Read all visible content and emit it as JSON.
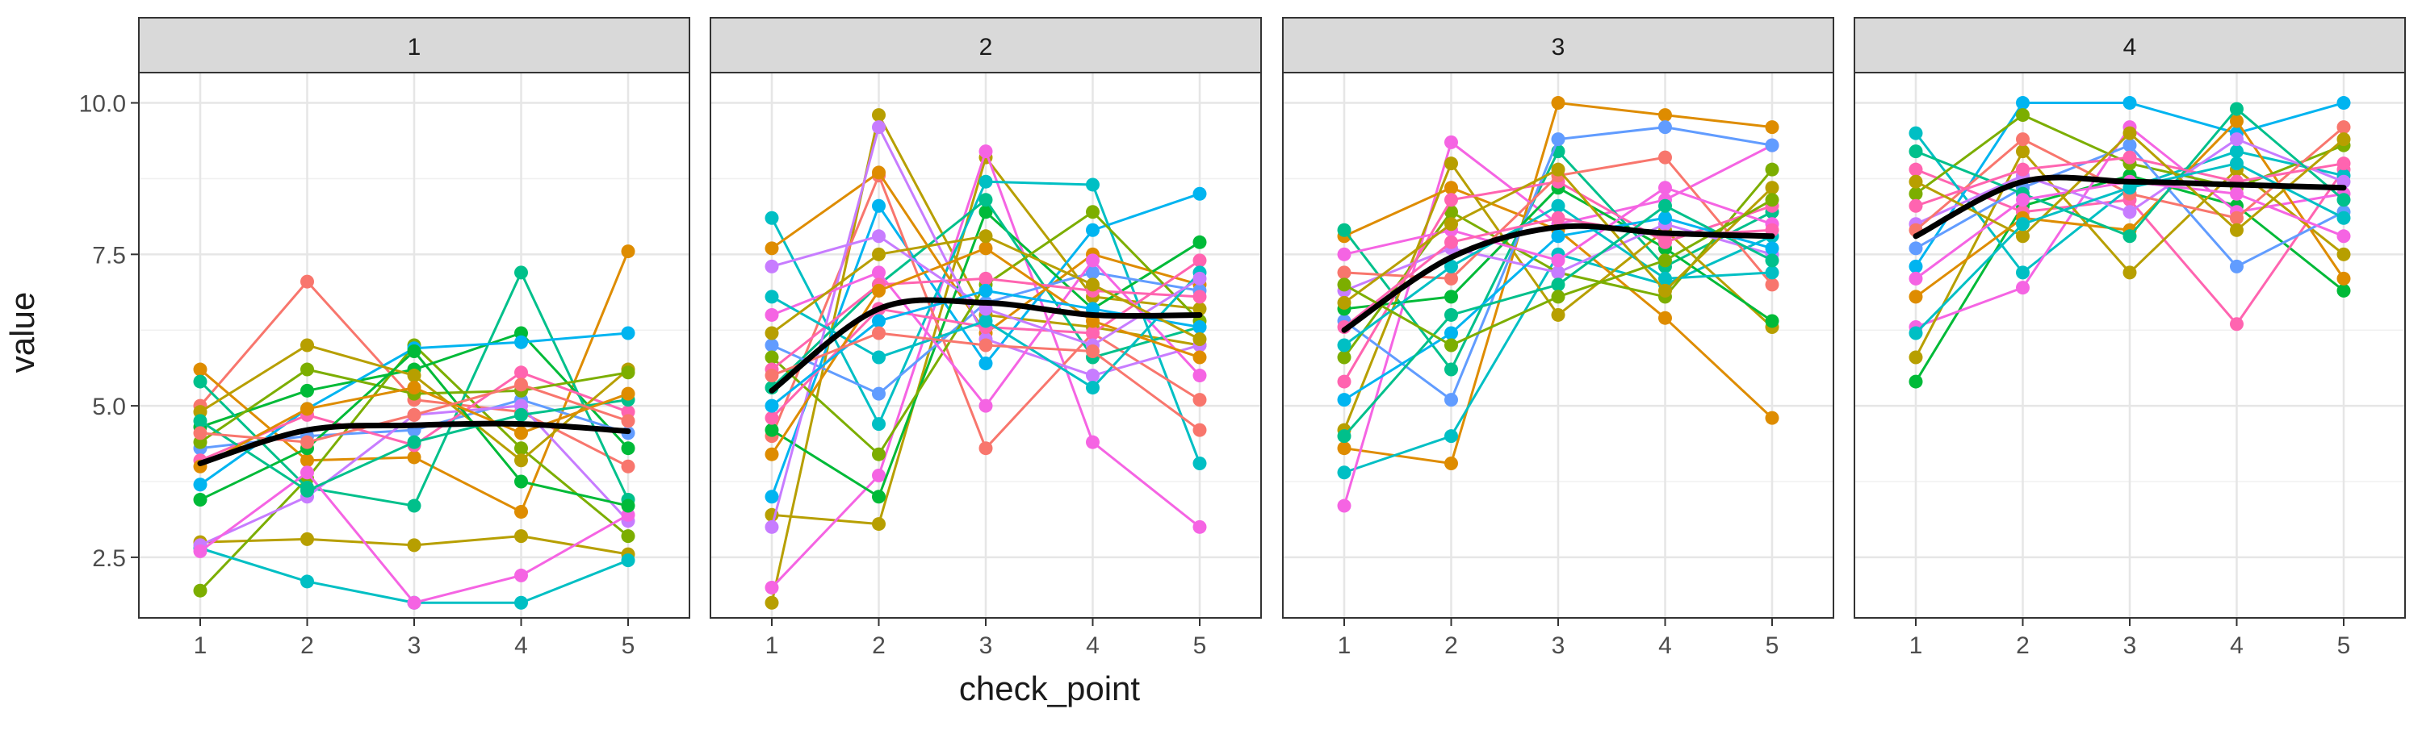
{
  "chart_data": {
    "type": "line",
    "facet_labels": [
      "1",
      "2",
      "3",
      "4"
    ],
    "xlabel": "check_point",
    "ylabel": "value",
    "x": [
      1,
      2,
      3,
      4,
      5
    ],
    "x_ticks": [
      "1",
      "2",
      "3",
      "4",
      "5"
    ],
    "y_ticks": [
      2.5,
      5.0,
      7.5,
      10.0
    ],
    "y_tick_labels": [
      "2.5",
      "5.0",
      "7.5",
      "10.0"
    ],
    "ylim": [
      1.5,
      10.5
    ],
    "grid": true,
    "legend": "none",
    "trend_color": "#000000",
    "palette": [
      "#F8766D",
      "#DE8C00",
      "#B79F00",
      "#7CAE00",
      "#00BA38",
      "#00C08B",
      "#00BFC4",
      "#00B4F0",
      "#619CFF",
      "#C77CFF",
      "#F564E3",
      "#FF64B0"
    ],
    "panels": [
      {
        "facet": "1",
        "trend": [
          4.05,
          4.6,
          4.68,
          4.7,
          4.58
        ],
        "sample_series": [
          {
            "color": "#F8766D",
            "values": [
              5.0,
              7.05,
              5.1,
              4.9,
              4.0
            ]
          },
          {
            "color": "#DE8C00",
            "values": [
              5.6,
              4.1,
              4.15,
              3.25,
              7.55
            ]
          },
          {
            "color": "#B79F00",
            "values": [
              2.75,
              2.8,
              2.7,
              2.85,
              2.55
            ]
          },
          {
            "color": "#7CAE00",
            "values": [
              1.95,
              3.8,
              6.0,
              4.3,
              2.85
            ]
          },
          {
            "color": "#00BA38",
            "values": [
              4.65,
              5.25,
              5.6,
              6.2,
              4.3
            ]
          },
          {
            "color": "#00C08B",
            "values": [
              5.4,
              3.65,
              3.35,
              7.2,
              3.45
            ]
          },
          {
            "color": "#00BFC4",
            "values": [
              2.65,
              2.1,
              1.75,
              1.75,
              2.45
            ]
          },
          {
            "color": "#00B4F0",
            "values": [
              3.7,
              4.95,
              5.95,
              6.05,
              6.2
            ]
          },
          {
            "color": "#619CFF",
            "values": [
              4.3,
              4.5,
              4.6,
              5.1,
              4.55
            ]
          },
          {
            "color": "#C77CFF",
            "values": [
              2.7,
              3.5,
              4.85,
              5.0,
              3.1
            ]
          },
          {
            "color": "#F564E3",
            "values": [
              2.6,
              3.9,
              1.75,
              2.2,
              3.2
            ]
          },
          {
            "color": "#FF64B0",
            "values": [
              4.1,
              4.85,
              4.35,
              5.55,
              4.9
            ]
          },
          {
            "color": "#B79F00",
            "values": [
              4.9,
              6.0,
              5.5,
              4.1,
              5.6
            ]
          },
          {
            "color": "#7CAE00",
            "values": [
              4.4,
              5.6,
              5.2,
              5.25,
              5.55
            ]
          },
          {
            "color": "#00BA38",
            "values": [
              3.45,
              4.3,
              5.9,
              3.75,
              3.35
            ]
          },
          {
            "color": "#00C08B",
            "values": [
              4.75,
              3.6,
              4.4,
              4.85,
              5.1
            ]
          },
          {
            "color": "#DE8C00",
            "values": [
              4.0,
              4.95,
              5.3,
              4.55,
              5.2
            ]
          },
          {
            "color": "#F8766D",
            "values": [
              4.55,
              4.4,
              4.85,
              5.35,
              4.75
            ]
          }
        ]
      },
      {
        "facet": "2",
        "trend": [
          5.25,
          6.6,
          6.7,
          6.5,
          6.5
        ],
        "sample_series": [
          {
            "color": "#B79F00",
            "values": [
              1.75,
              9.8,
              6.5,
              6.3,
              6.0
            ]
          },
          {
            "color": "#B79F00",
            "values": [
              3.2,
              3.05,
              9.1,
              6.8,
              6.6
            ]
          },
          {
            "color": "#F564E3",
            "values": [
              2.0,
              3.85,
              9.2,
              4.4,
              3.0
            ]
          },
          {
            "color": "#00BFC4",
            "values": [
              8.1,
              4.7,
              8.7,
              8.65,
              4.05
            ]
          },
          {
            "color": "#00B4F0",
            "values": [
              3.5,
              8.3,
              5.7,
              7.9,
              8.5
            ]
          },
          {
            "color": "#F8766D",
            "values": [
              4.5,
              8.8,
              4.3,
              6.2,
              5.1
            ]
          },
          {
            "color": "#DE8C00",
            "values": [
              7.6,
              8.85,
              6.2,
              7.5,
              7.0
            ]
          },
          {
            "color": "#00BA38",
            "values": [
              4.6,
              3.5,
              8.2,
              6.6,
              7.7
            ]
          },
          {
            "color": "#00C08B",
            "values": [
              5.3,
              7.0,
              8.4,
              5.8,
              6.3
            ]
          },
          {
            "color": "#619CFF",
            "values": [
              6.0,
              5.2,
              6.7,
              7.2,
              6.9
            ]
          },
          {
            "color": "#C77CFF",
            "values": [
              3.0,
              9.6,
              6.1,
              5.5,
              6.0
            ]
          },
          {
            "color": "#7CAE00",
            "values": [
              5.8,
              4.2,
              7.0,
              8.2,
              6.4
            ]
          },
          {
            "color": "#FF64B0",
            "values": [
              4.8,
              6.6,
              6.3,
              6.2,
              7.4
            ]
          },
          {
            "color": "#F564E3",
            "values": [
              6.5,
              7.2,
              5.0,
              7.4,
              5.5
            ]
          },
          {
            "color": "#FF64B0",
            "values": [
              5.6,
              7.0,
              7.1,
              6.9,
              6.8
            ]
          },
          {
            "color": "#00BFC4",
            "values": [
              6.8,
              5.8,
              6.4,
              5.3,
              7.2
            ]
          },
          {
            "color": "#DE8C00",
            "values": [
              4.2,
              6.9,
              7.6,
              6.4,
              5.8
            ]
          },
          {
            "color": "#C77CFF",
            "values": [
              7.3,
              7.8,
              6.6,
              6.0,
              7.1
            ]
          },
          {
            "color": "#00B4F0",
            "values": [
              5.0,
              6.4,
              6.9,
              6.6,
              6.3
            ]
          },
          {
            "color": "#B79F00",
            "values": [
              6.2,
              7.5,
              7.8,
              7.0,
              6.1
            ]
          },
          {
            "color": "#F8766D",
            "values": [
              5.5,
              6.2,
              6.0,
              5.9,
              4.6
            ]
          }
        ]
      },
      {
        "facet": "3",
        "trend": [
          6.25,
          7.45,
          7.95,
          7.85,
          7.8
        ],
        "sample_series": [
          {
            "color": "#DE8C00",
            "values": [
              4.3,
              4.05,
              10.0,
              9.8,
              9.6
            ]
          },
          {
            "color": "#00BFC4",
            "values": [
              3.9,
              4.5,
              7.5,
              7.0,
              7.8
            ]
          },
          {
            "color": "#F564E3",
            "values": [
              3.35,
              9.35,
              8.0,
              8.4,
              9.3
            ]
          },
          {
            "color": "#DE8C00",
            "values": [
              7.8,
              8.6,
              7.9,
              6.45,
              4.8
            ]
          },
          {
            "color": "#00C08B",
            "values": [
              7.9,
              5.6,
              9.2,
              7.3,
              8.2
            ]
          },
          {
            "color": "#B79F00",
            "values": [
              4.6,
              9.0,
              6.5,
              7.9,
              6.3
            ]
          },
          {
            "color": "#619CFF",
            "values": [
              6.4,
              5.1,
              9.4,
              9.6,
              9.3
            ]
          },
          {
            "color": "#7CAE00",
            "values": [
              5.8,
              8.2,
              7.2,
              6.8,
              8.9
            ]
          },
          {
            "color": "#00BA38",
            "values": [
              6.6,
              6.8,
              8.6,
              7.6,
              6.4
            ]
          },
          {
            "color": "#C77CFF",
            "values": [
              6.9,
              7.6,
              7.2,
              8.0,
              7.5
            ]
          },
          {
            "color": "#FF64B0",
            "values": [
              5.4,
              8.4,
              8.7,
              7.7,
              8.3
            ]
          },
          {
            "color": "#F8766D",
            "values": [
              7.2,
              7.1,
              8.8,
              9.1,
              7.0
            ]
          },
          {
            "color": "#00B4F0",
            "values": [
              5.1,
              6.2,
              7.8,
              8.1,
              7.6
            ]
          },
          {
            "color": "#F564E3",
            "values": [
              7.5,
              7.9,
              7.4,
              8.6,
              8.0
            ]
          },
          {
            "color": "#00BFC4",
            "values": [
              6.0,
              7.3,
              8.3,
              7.1,
              7.2
            ]
          },
          {
            "color": "#B79F00",
            "values": [
              6.7,
              8.0,
              8.9,
              6.9,
              8.6
            ]
          },
          {
            "color": "#00C08B",
            "values": [
              4.5,
              6.5,
              7.0,
              8.3,
              7.4
            ]
          },
          {
            "color": "#FF64B0",
            "values": [
              6.3,
              7.7,
              8.1,
              7.8,
              7.9
            ]
          },
          {
            "color": "#7CAE00",
            "values": [
              7.0,
              6.0,
              6.8,
              7.4,
              8.4
            ]
          }
        ]
      },
      {
        "facet": "4",
        "trend": [
          7.8,
          8.7,
          8.7,
          8.65,
          8.6
        ],
        "sample_series": [
          {
            "color": "#00BA38",
            "values": [
              5.4,
              8.3,
              8.8,
              8.3,
              6.9
            ]
          },
          {
            "color": "#FF64B0",
            "values": [
              8.9,
              8.2,
              8.4,
              6.35,
              8.9
            ]
          },
          {
            "color": "#00BFC4",
            "values": [
              9.5,
              7.2,
              8.6,
              9.2,
              8.8
            ]
          },
          {
            "color": "#00B4F0",
            "values": [
              7.3,
              10.0,
              10.0,
              9.5,
              10.0
            ]
          },
          {
            "color": "#F564E3",
            "values": [
              6.3,
              6.95,
              9.6,
              8.2,
              8.5
            ]
          },
          {
            "color": "#B79F00",
            "values": [
              5.8,
              9.2,
              7.2,
              8.9,
              7.5
            ]
          },
          {
            "color": "#DE8C00",
            "values": [
              6.8,
              8.1,
              7.9,
              9.7,
              7.1
            ]
          },
          {
            "color": "#7CAE00",
            "values": [
              8.5,
              9.8,
              9.0,
              8.6,
              9.3
            ]
          },
          {
            "color": "#619CFF",
            "values": [
              7.6,
              8.6,
              9.3,
              7.3,
              8.2
            ]
          },
          {
            "color": "#C77CFF",
            "values": [
              8.0,
              8.8,
              8.2,
              9.4,
              8.7
            ]
          },
          {
            "color": "#F8766D",
            "values": [
              7.9,
              9.4,
              8.5,
              8.1,
              9.6
            ]
          },
          {
            "color": "#00C08B",
            "values": [
              9.2,
              8.5,
              7.8,
              9.9,
              8.4
            ]
          },
          {
            "color": "#FF64B0",
            "values": [
              8.3,
              8.9,
              9.1,
              8.7,
              9.0
            ]
          },
          {
            "color": "#F564E3",
            "values": [
              7.1,
              8.4,
              8.7,
              8.5,
              7.8
            ]
          },
          {
            "color": "#B79F00",
            "values": [
              8.7,
              7.8,
              9.5,
              7.9,
              9.4
            ]
          },
          {
            "color": "#00BFC4",
            "values": [
              6.2,
              8.0,
              8.6,
              9.0,
              8.1
            ]
          }
        ]
      }
    ]
  }
}
